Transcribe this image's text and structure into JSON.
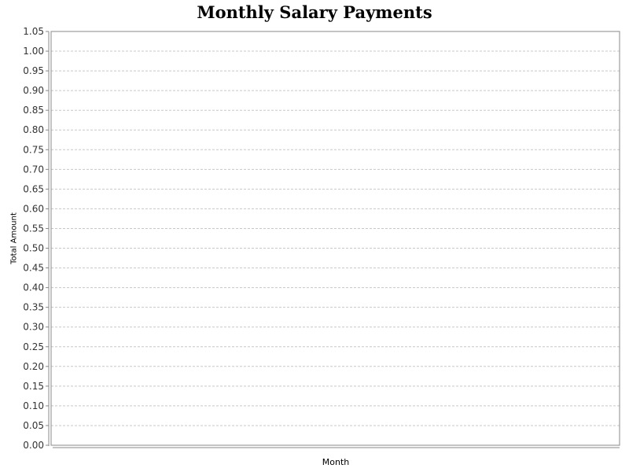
{
  "chart_data": {
    "type": "bar",
    "title": "Monthly Salary Payments",
    "xlabel": "Month",
    "ylabel": "Total Amount",
    "categories": [],
    "values": [],
    "ylim": [
      0,
      1.05
    ],
    "y_ticks": [
      "0.00",
      "0.05",
      "0.10",
      "0.15",
      "0.20",
      "0.25",
      "0.30",
      "0.35",
      "0.40",
      "0.45",
      "0.50",
      "0.55",
      "0.60",
      "0.65",
      "0.70",
      "0.75",
      "0.80",
      "0.85",
      "0.90",
      "0.95",
      "1.00",
      "1.05"
    ],
    "grid": true,
    "legend": "none"
  }
}
